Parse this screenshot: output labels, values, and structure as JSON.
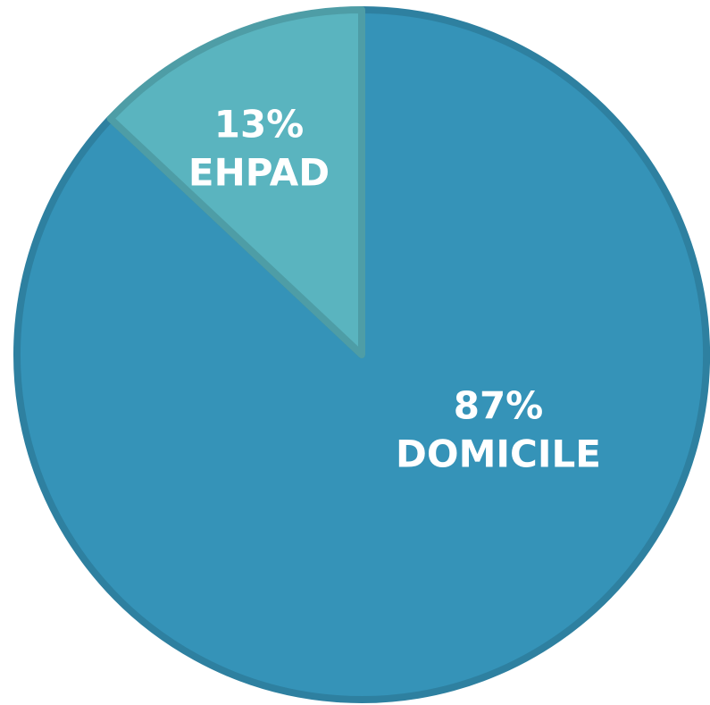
{
  "chart_data": {
    "type": "pie",
    "categories": [
      "DOMICILE",
      "EHPAD"
    ],
    "values": [
      87,
      13
    ],
    "value_labels": [
      "87%",
      "13%"
    ],
    "colors": [
      "#3593b8",
      "#5ab4bf"
    ]
  }
}
